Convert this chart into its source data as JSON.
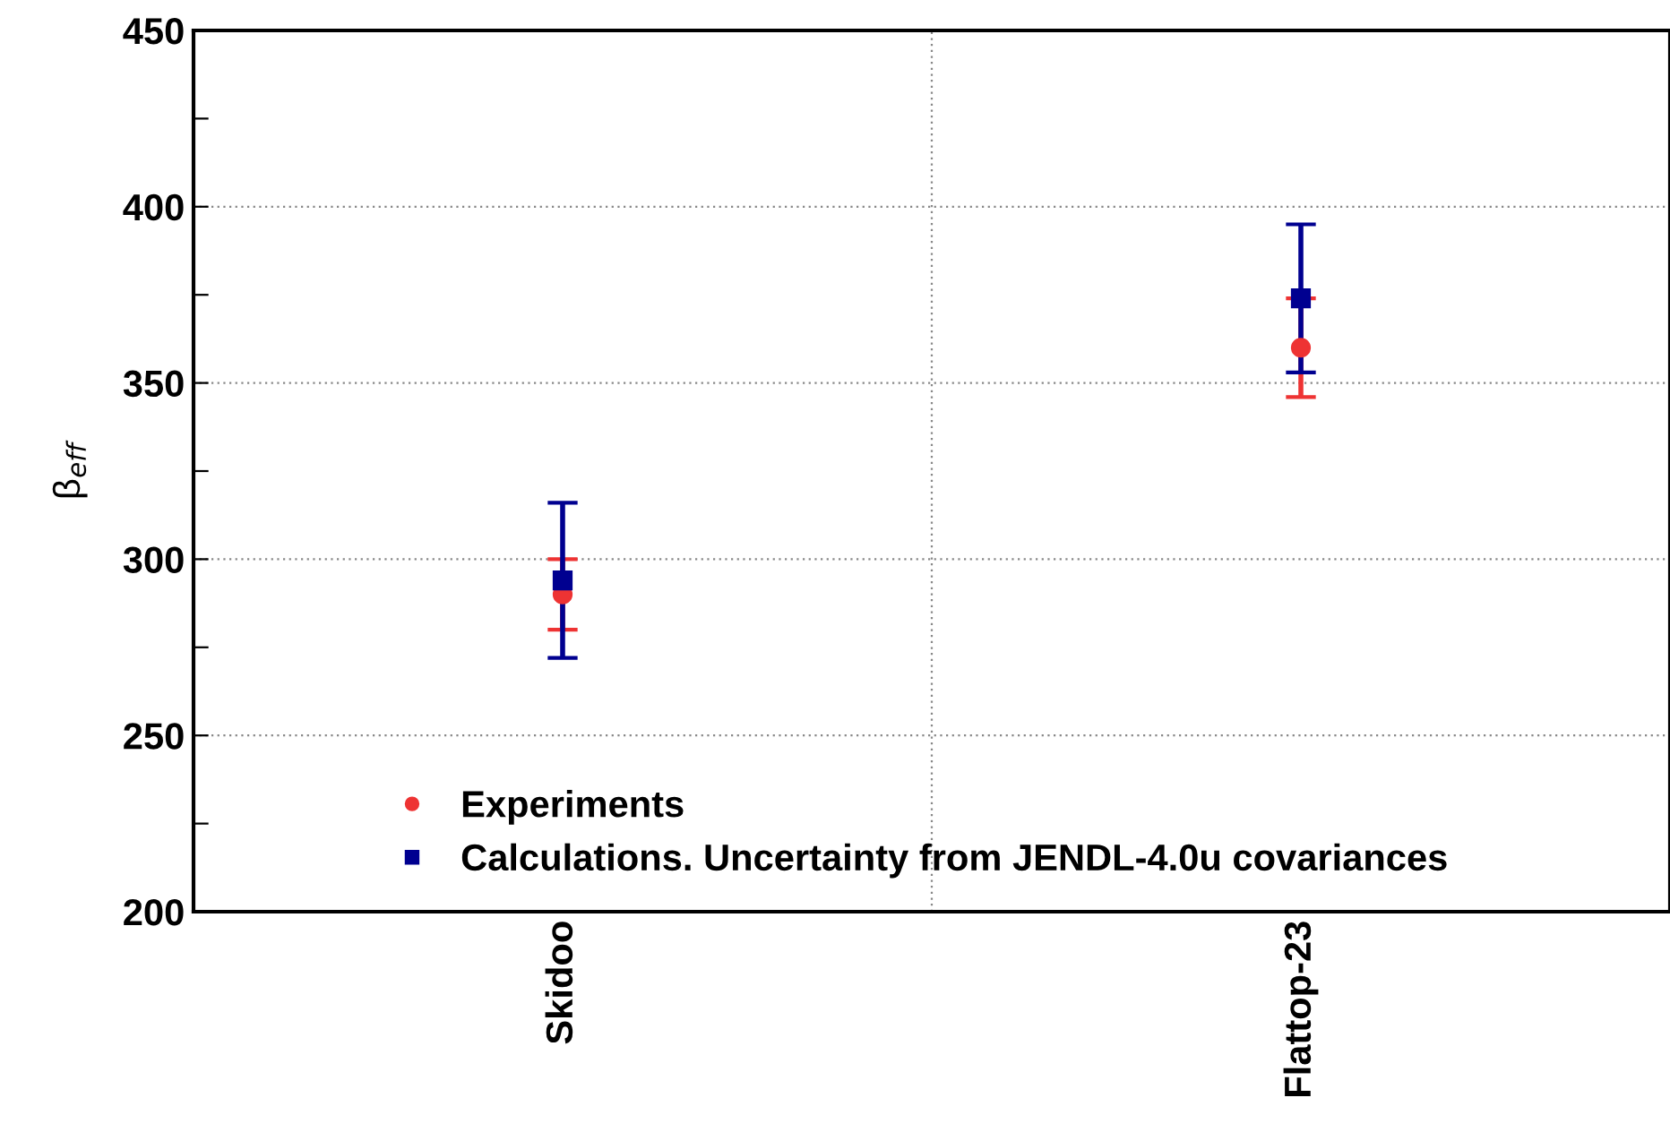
{
  "chart_data": {
    "type": "scatter",
    "ylabel": "β$_{eff}$",
    "categories": [
      "Skidoo",
      "Flattop-23"
    ],
    "series": [
      {
        "name": "Experiments",
        "color": "#ee3333",
        "marker": "circle",
        "values": [
          290,
          360
        ],
        "errors": [
          10,
          14
        ]
      },
      {
        "name": "Calculations. Uncertainty from JENDL-4.0u covariances",
        "color": "#000090",
        "marker": "square",
        "values": [
          294,
          374
        ],
        "errors": [
          [
            272,
            316
          ],
          [
            353,
            395
          ]
        ]
      }
    ],
    "ylim": [
      200,
      450
    ],
    "yticks": [
      200,
      {
        "value": 225,
        "label": null
      },
      250,
      {
        "value": 275,
        "label": null
      },
      300,
      {
        "value": 325,
        "label": null
      },
      350,
      {
        "value": 375,
        "label": null
      },
      400,
      {
        "value": 425,
        "label": null
      },
      450
    ],
    "grid": true,
    "legend": "bottom left"
  }
}
